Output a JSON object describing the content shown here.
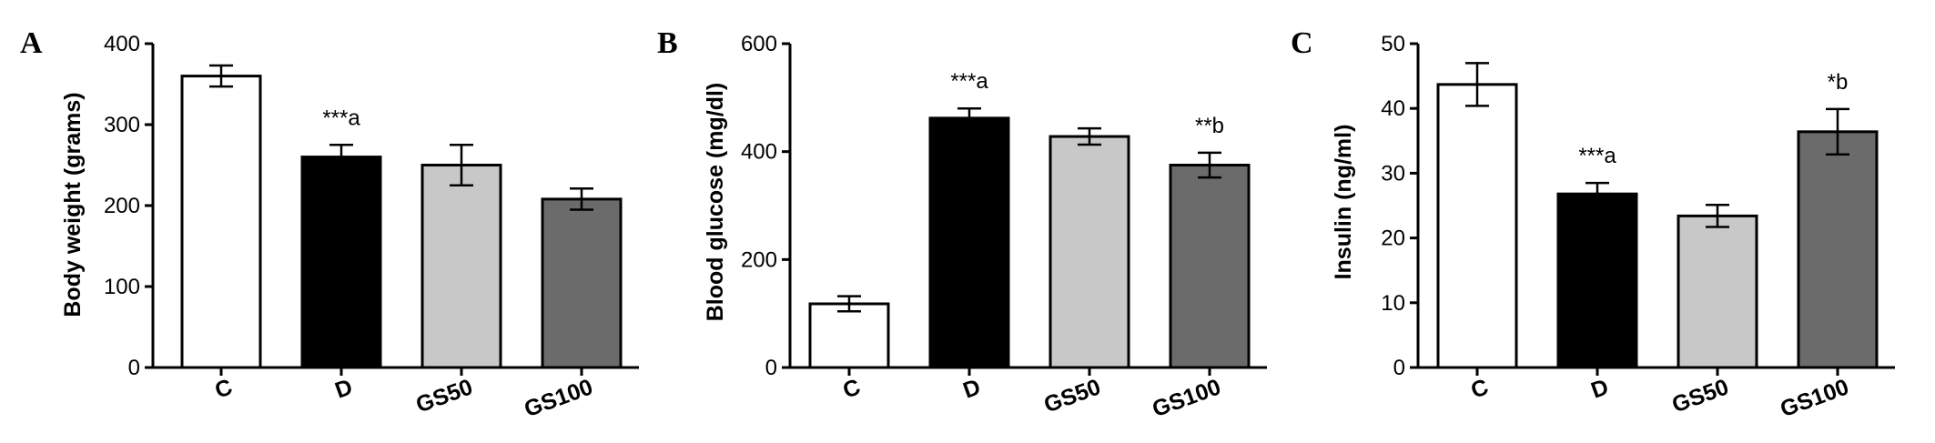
{
  "chart_data": [
    {
      "panel": "A",
      "type": "bar",
      "categories": [
        "C",
        "D",
        "GS50",
        "GS100"
      ],
      "values": [
        360,
        260,
        250,
        208
      ],
      "errors": [
        13,
        15,
        25,
        13
      ],
      "annotations": [
        "",
        "***a",
        "",
        ""
      ],
      "colors": [
        "#ffffff",
        "#000000",
        "#c8c8c8",
        "#6b6b6b"
      ],
      "ylabel": "Body weight (grams)",
      "ylim": [
        0,
        400
      ],
      "yticks": [
        0,
        100,
        200,
        300,
        400
      ]
    },
    {
      "panel": "B",
      "type": "bar",
      "categories": [
        "C",
        "D",
        "GS50",
        "GS100"
      ],
      "values": [
        118,
        462,
        428,
        375
      ],
      "errors": [
        14,
        18,
        15,
        23
      ],
      "annotations": [
        "",
        "***a",
        "",
        "**b"
      ],
      "colors": [
        "#ffffff",
        "#000000",
        "#c8c8c8",
        "#6b6b6b"
      ],
      "ylabel": "Blood glucose (mg/dl)",
      "ylim": [
        0,
        600
      ],
      "yticks": [
        0,
        200,
        400,
        600
      ]
    },
    {
      "panel": "C",
      "type": "bar",
      "categories": [
        "C",
        "D",
        "GS50",
        "GS100"
      ],
      "values": [
        43.7,
        26.8,
        23.4,
        36.4
      ],
      "errors": [
        3.3,
        1.7,
        1.7,
        3.5
      ],
      "annotations": [
        "",
        "***a",
        "",
        "*b"
      ],
      "colors": [
        "#ffffff",
        "#000000",
        "#c8c8c8",
        "#6b6b6b"
      ],
      "ylabel": "Insulin (ng/ml)",
      "ylim": [
        0,
        50
      ],
      "yticks": [
        0,
        10,
        20,
        30,
        40,
        50
      ]
    }
  ]
}
